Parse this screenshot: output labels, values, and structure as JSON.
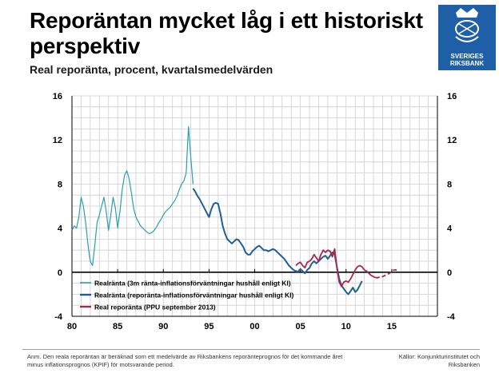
{
  "header": {
    "title": "Reporäntan mycket låg i ett historiskt perspektiv",
    "subtitle": "Real reporänta, procent, kvartalsmedelvärden"
  },
  "logo": {
    "line1": "SVERIGES",
    "line2": "RIKSBANK"
  },
  "footer": {
    "note": "Anm. Den reala reporäntan är beräknad som ett medelvärde av Riksbankens reporänteprognos för det kommande året minus inflationsprognos (KPIF) för motsvarande period.",
    "source": "Källor: Konjunkturinstitutet och Riksbanken"
  },
  "colors": {
    "light_blue": "#2a9fb0",
    "dark_blue": "#1f5f94",
    "red": "#a8264e",
    "grid": "#cfcfcf",
    "zero_line": "#000000"
  },
  "chart_data": {
    "type": "line",
    "title": "",
    "xlabel": "",
    "ylabel": "",
    "x_ticks": [
      "80",
      "85",
      "90",
      "95",
      "00",
      "05",
      "10",
      "15"
    ],
    "y_ticks": [
      "-4",
      "0",
      "4",
      "8",
      "12",
      "16"
    ],
    "x_tick_values": [
      1980,
      1985,
      1990,
      1995,
      2000,
      2005,
      2010,
      2015
    ],
    "y_tick_values": [
      -4,
      0,
      4,
      8,
      12,
      16
    ],
    "xlim": [
      1980,
      2020
    ],
    "ylim": [
      -4,
      16
    ],
    "grid": true,
    "legend_placement": "lower-left",
    "series": [
      {
        "name": "Realränta (3m ränta-inflationsförväntningar hushåll enligt KI)",
        "color": "#2a9fb0",
        "width": 1.2,
        "points": [
          [
            1980.0,
            3.8
          ],
          [
            1980.25,
            4.2
          ],
          [
            1980.5,
            4.0
          ],
          [
            1980.75,
            5.0
          ],
          [
            1981.0,
            6.8
          ],
          [
            1981.25,
            6.0
          ],
          [
            1981.5,
            4.5
          ],
          [
            1981.75,
            2.5
          ],
          [
            1982.0,
            1.0
          ],
          [
            1982.25,
            0.6
          ],
          [
            1982.5,
            2.5
          ],
          [
            1982.75,
            4.5
          ],
          [
            1983.0,
            5.2
          ],
          [
            1983.25,
            6.0
          ],
          [
            1983.5,
            6.8
          ],
          [
            1983.75,
            5.5
          ],
          [
            1984.0,
            3.8
          ],
          [
            1984.25,
            5.2
          ],
          [
            1984.5,
            6.8
          ],
          [
            1984.75,
            5.8
          ],
          [
            1985.0,
            4.0
          ],
          [
            1985.25,
            5.5
          ],
          [
            1985.5,
            7.5
          ],
          [
            1985.75,
            8.8
          ],
          [
            1986.0,
            9.2
          ],
          [
            1986.25,
            8.5
          ],
          [
            1986.5,
            7.2
          ],
          [
            1986.75,
            5.8
          ],
          [
            1987.0,
            5.0
          ],
          [
            1987.25,
            4.6
          ],
          [
            1987.5,
            4.2
          ],
          [
            1987.75,
            4.0
          ],
          [
            1988.0,
            3.8
          ],
          [
            1988.25,
            3.6
          ],
          [
            1988.5,
            3.5
          ],
          [
            1988.75,
            3.6
          ],
          [
            1989.0,
            3.8
          ],
          [
            1989.25,
            4.1
          ],
          [
            1989.5,
            4.5
          ],
          [
            1989.75,
            4.8
          ],
          [
            1990.0,
            5.2
          ],
          [
            1990.25,
            5.5
          ],
          [
            1990.5,
            5.7
          ],
          [
            1990.75,
            5.9
          ],
          [
            1991.0,
            6.2
          ],
          [
            1991.25,
            6.5
          ],
          [
            1991.5,
            6.9
          ],
          [
            1991.75,
            7.5
          ],
          [
            1992.0,
            8.0
          ],
          [
            1992.25,
            8.3
          ],
          [
            1992.5,
            9.0
          ],
          [
            1992.75,
            13.2
          ],
          [
            1993.0,
            10.5
          ],
          [
            1993.25,
            8.0
          ]
        ]
      },
      {
        "name": "Realränta (reporänta-inflationsförväntningar hushåll enligt KI)",
        "color": "#1f5f94",
        "width": 2.0,
        "points": [
          [
            1993.25,
            7.6
          ],
          [
            1993.5,
            7.3
          ],
          [
            1993.75,
            6.9
          ],
          [
            1994.0,
            6.6
          ],
          [
            1994.25,
            6.2
          ],
          [
            1994.5,
            5.8
          ],
          [
            1994.75,
            5.4
          ],
          [
            1995.0,
            5.0
          ],
          [
            1995.25,
            5.7
          ],
          [
            1995.5,
            6.2
          ],
          [
            1995.75,
            6.3
          ],
          [
            1996.0,
            6.2
          ],
          [
            1996.25,
            5.3
          ],
          [
            1996.5,
            4.2
          ],
          [
            1996.75,
            3.5
          ],
          [
            1997.0,
            3.0
          ],
          [
            1997.25,
            2.8
          ],
          [
            1997.5,
            2.6
          ],
          [
            1997.75,
            2.8
          ],
          [
            1998.0,
            3.0
          ],
          [
            1998.25,
            2.9
          ],
          [
            1998.5,
            2.6
          ],
          [
            1998.75,
            2.3
          ],
          [
            1999.0,
            1.8
          ],
          [
            1999.25,
            1.6
          ],
          [
            1999.5,
            1.6
          ],
          [
            1999.75,
            1.9
          ],
          [
            2000.0,
            2.1
          ],
          [
            2000.25,
            2.3
          ],
          [
            2000.5,
            2.4
          ],
          [
            2000.75,
            2.2
          ],
          [
            2001.0,
            2.0
          ],
          [
            2001.25,
            2.0
          ],
          [
            2001.5,
            1.9
          ],
          [
            2001.75,
            2.0
          ],
          [
            2002.0,
            2.1
          ],
          [
            2002.25,
            2.0
          ],
          [
            2002.5,
            1.8
          ],
          [
            2002.75,
            1.6
          ],
          [
            2003.0,
            1.4
          ],
          [
            2003.25,
            1.2
          ],
          [
            2003.5,
            0.9
          ],
          [
            2003.75,
            0.6
          ],
          [
            2004.0,
            0.4
          ],
          [
            2004.25,
            0.2
          ],
          [
            2004.5,
            0.1
          ],
          [
            2004.75,
            0.05
          ],
          [
            2005.0,
            0.3
          ],
          [
            2005.25,
            0.1
          ],
          [
            2005.5,
            -0.1
          ],
          [
            2005.75,
            0.2
          ],
          [
            2006.0,
            0.4
          ],
          [
            2006.25,
            0.8
          ],
          [
            2006.5,
            1.0
          ],
          [
            2006.75,
            0.8
          ],
          [
            2007.0,
            1.0
          ],
          [
            2007.25,
            1.2
          ],
          [
            2007.5,
            1.4
          ],
          [
            2007.75,
            1.5
          ],
          [
            2008.0,
            1.2
          ],
          [
            2008.25,
            1.5
          ],
          [
            2008.5,
            1.8
          ],
          [
            2008.75,
            1.6
          ],
          [
            2009.0,
            0.5
          ],
          [
            2009.25,
            -0.6
          ],
          [
            2009.5,
            -1.2
          ],
          [
            2009.75,
            -1.5
          ],
          [
            2010.0,
            -1.8
          ],
          [
            2010.25,
            -2.0
          ],
          [
            2010.5,
            -1.7
          ],
          [
            2010.75,
            -1.4
          ],
          [
            2011.0,
            -1.8
          ],
          [
            2011.25,
            -1.6
          ],
          [
            2011.5,
            -1.2
          ],
          [
            2011.75,
            -0.8
          ]
        ]
      },
      {
        "name": "Real reporänta (PPU september 2013)",
        "color": "#a8264e",
        "width": 1.8,
        "points": [
          [
            2004.5,
            0.6
          ],
          [
            2004.75,
            0.8
          ],
          [
            2005.0,
            0.9
          ],
          [
            2005.25,
            0.6
          ],
          [
            2005.5,
            0.4
          ],
          [
            2005.75,
            0.9
          ],
          [
            2006.0,
            1.0
          ],
          [
            2006.25,
            1.2
          ],
          [
            2006.5,
            1.6
          ],
          [
            2006.75,
            1.3
          ],
          [
            2007.0,
            1.0
          ],
          [
            2007.25,
            1.6
          ],
          [
            2007.5,
            2.0
          ],
          [
            2007.75,
            1.8
          ],
          [
            2008.0,
            2.0
          ],
          [
            2008.25,
            1.9
          ],
          [
            2008.5,
            1.4
          ],
          [
            2008.75,
            2.1
          ],
          [
            2009.0,
            0.4
          ],
          [
            2009.25,
            -0.9
          ],
          [
            2009.5,
            -1.3
          ],
          [
            2009.75,
            -0.9
          ],
          [
            2010.0,
            -0.8
          ],
          [
            2010.25,
            -0.9
          ],
          [
            2010.5,
            -0.6
          ],
          [
            2010.75,
            -0.2
          ],
          [
            2011.0,
            0.2
          ],
          [
            2011.25,
            0.5
          ],
          [
            2011.5,
            0.6
          ],
          [
            2011.75,
            0.5
          ],
          [
            2012.0,
            0.2
          ],
          [
            2012.25,
            0.1
          ],
          [
            2012.5,
            -0.1
          ],
          [
            2012.75,
            -0.3
          ],
          [
            2013.0,
            -0.4
          ],
          [
            2013.25,
            -0.5
          ]
        ]
      },
      {
        "name": "",
        "color": "#a8264e",
        "width": 1.8,
        "dashed": true,
        "points": [
          [
            2013.25,
            -0.5
          ],
          [
            2013.5,
            -0.5
          ],
          [
            2013.75,
            -0.4
          ],
          [
            2014.0,
            -0.4
          ],
          [
            2014.25,
            -0.3
          ],
          [
            2014.5,
            -0.2
          ],
          [
            2014.75,
            -0.1
          ],
          [
            2015.0,
            0.1
          ],
          [
            2015.25,
            0.2
          ],
          [
            2015.5,
            0.2
          ],
          [
            2015.75,
            0.3
          ]
        ]
      }
    ]
  }
}
